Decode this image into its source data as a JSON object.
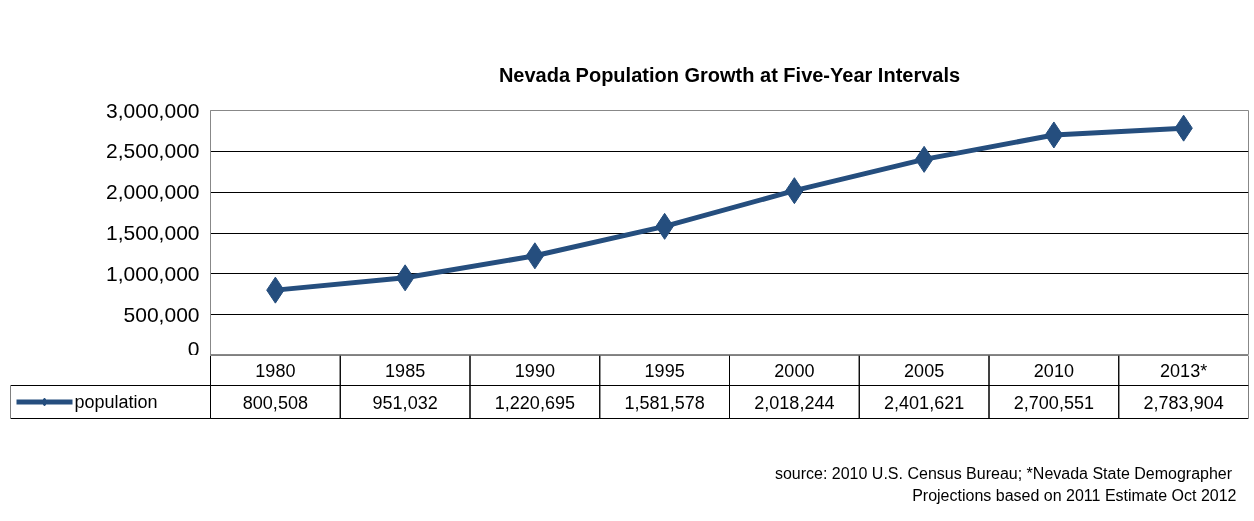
{
  "chart_data": {
    "type": "line",
    "title": "Nevada Population Growth at Five-Year Intervals",
    "categories": [
      "1980",
      "1985",
      "1990",
      "1995",
      "2000",
      "2005",
      "2010",
      "2013*"
    ],
    "series": [
      {
        "name": "population",
        "color": "#254e7e",
        "values": [
          800508,
          951032,
          1220695,
          1581578,
          2018244,
          2401621,
          2700551,
          2783904
        ]
      }
    ],
    "ylim": [
      0,
      3000000
    ],
    "yticks": [
      {
        "value": 0,
        "label": "0"
      },
      {
        "value": 500000,
        "label": "500,000"
      },
      {
        "value": 1000000,
        "label": "1,000,000"
      },
      {
        "value": 1500000,
        "label": "1,500,000"
      },
      {
        "value": 2000000,
        "label": "2,000,000"
      },
      {
        "value": 2500000,
        "label": "2,500,000"
      },
      {
        "value": 3000000,
        "label": "3,000,000"
      }
    ],
    "value_labels": [
      "800,508",
      "951,032",
      "1,220,695",
      "1,581,578",
      "2,018,244",
      "2,401,621",
      "2,700,551",
      "2,783,904"
    ],
    "grid": "y",
    "marker": "diamond",
    "legend": "bottom",
    "annotations": [
      "source:  2010 U.S. Census Bureau; *Nevada State Demographer",
      "Projections based on 2011 Estimate Oct 2012"
    ]
  }
}
